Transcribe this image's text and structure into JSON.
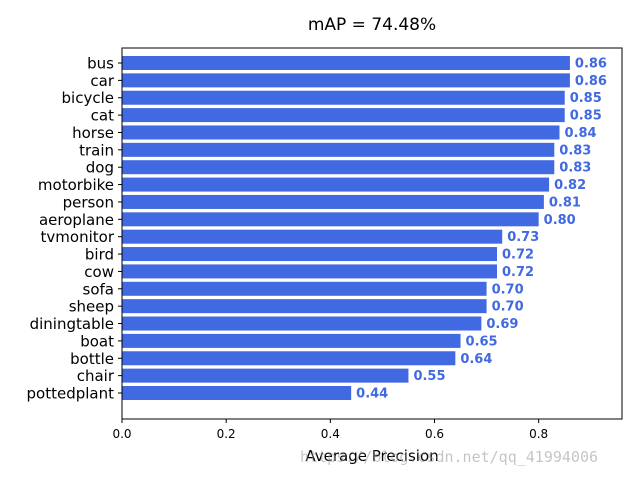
{
  "chart_data": {
    "type": "bar",
    "orientation": "horizontal",
    "title": "mAP = 74.48%",
    "xlabel": "Average Precision",
    "ylabel": "",
    "xlim": [
      0,
      0.96
    ],
    "x_ticks": [
      "0.0",
      "0.2",
      "0.4",
      "0.6",
      "0.8"
    ],
    "bar_color": "#4169E1",
    "value_label_color": "#4169E1",
    "grid": false,
    "categories": [
      "bus",
      "car",
      "bicycle",
      "cat",
      "horse",
      "train",
      "dog",
      "motorbike",
      "person",
      "aeroplane",
      "tvmonitor",
      "bird",
      "cow",
      "sofa",
      "sheep",
      "diningtable",
      "boat",
      "bottle",
      "chair",
      "pottedplant"
    ],
    "values": [
      0.86,
      0.86,
      0.85,
      0.85,
      0.84,
      0.83,
      0.83,
      0.82,
      0.81,
      0.8,
      0.73,
      0.72,
      0.72,
      0.7,
      0.7,
      0.69,
      0.65,
      0.64,
      0.55,
      0.44
    ],
    "value_labels": [
      "0.86",
      "0.86",
      "0.85",
      "0.85",
      "0.84",
      "0.83",
      "0.83",
      "0.82",
      "0.81",
      "0.80",
      "0.73",
      "0.72",
      "0.72",
      "0.70",
      "0.70",
      "0.69",
      "0.65",
      "0.64",
      "0.55",
      "0.44"
    ]
  },
  "watermark": "https://blog.csdn.net/qq_41994006"
}
